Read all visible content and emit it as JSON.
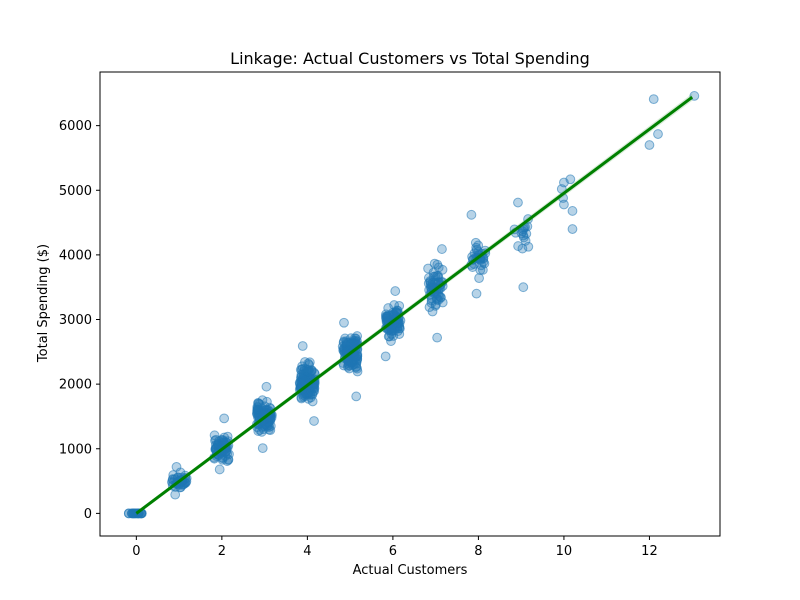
{
  "chart_data": {
    "type": "scatter",
    "title": "Linkage: Actual Customers vs Total Spending",
    "xlabel": "Actual Customers",
    "ylabel": "Total Spending ($)",
    "xlim": [
      -0.85,
      13.65
    ],
    "ylim": [
      -350,
      6830
    ],
    "xticks": [
      0,
      2,
      4,
      6,
      8,
      10,
      12
    ],
    "yticks": [
      0,
      1000,
      2000,
      3000,
      4000,
      5000,
      6000
    ],
    "grid": false,
    "colors": {
      "points": "#1f77b4",
      "fit_line": "#008000"
    },
    "clusters": [
      {
        "x": 0,
        "count": 22,
        "y_min": 0,
        "y_max": 0,
        "y_mean": 0
      },
      {
        "x": 1,
        "count": 40,
        "y_min": 290,
        "y_max": 720,
        "y_mean": 500
      },
      {
        "x": 2,
        "count": 75,
        "y_min": 680,
        "y_max": 1470,
        "y_mean": 1000
      },
      {
        "x": 3,
        "count": 110,
        "y_min": 1010,
        "y_max": 1960,
        "y_mean": 1500
      },
      {
        "x": 4,
        "count": 120,
        "y_min": 1430,
        "y_max": 2590,
        "y_mean": 2000
      },
      {
        "x": 5,
        "count": 110,
        "y_min": 1810,
        "y_max": 2950,
        "y_mean": 2480
      },
      {
        "x": 6,
        "count": 85,
        "y_min": 2430,
        "y_max": 3440,
        "y_mean": 2960
      },
      {
        "x": 7,
        "count": 60,
        "y_min": 2720,
        "y_max": 4090,
        "y_mean": 3500
      },
      {
        "x": 8,
        "count": 35,
        "y_min": 3400,
        "y_max": 4620,
        "y_mean": 4000
      },
      {
        "x": 9,
        "count": 18,
        "y_min": 3500,
        "y_max": 4810,
        "y_mean": 4300
      }
    ],
    "outliers": [
      {
        "x": 9.95,
        "y": 5020
      },
      {
        "x": 10.0,
        "y": 5120
      },
      {
        "x": 10.15,
        "y": 5170
      },
      {
        "x": 9.98,
        "y": 4880
      },
      {
        "x": 10.0,
        "y": 4780
      },
      {
        "x": 10.2,
        "y": 4680
      },
      {
        "x": 10.2,
        "y": 4400
      },
      {
        "x": 12.0,
        "y": 5700
      },
      {
        "x": 12.1,
        "y": 6410
      },
      {
        "x": 12.2,
        "y": 5870
      },
      {
        "x": 13.05,
        "y": 6460
      }
    ],
    "fit_line": {
      "x": [
        0,
        13
      ],
      "y": [
        0,
        6440
      ]
    }
  }
}
